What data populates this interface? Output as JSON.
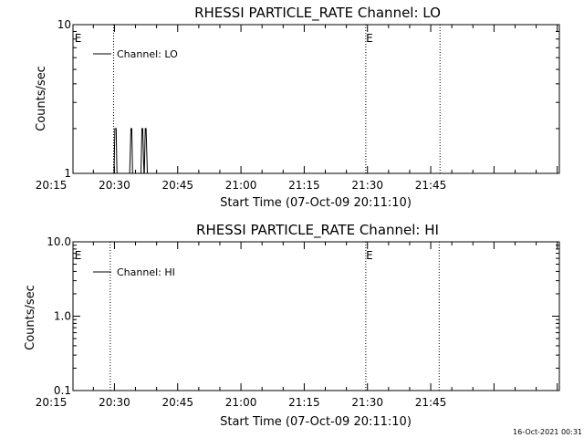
{
  "footer_timestamp": "16-Oct-2021 00:31",
  "chart_data": [
    {
      "type": "line",
      "title": "RHESSI PARTICLE_RATE Channel: LO",
      "xlabel": "Start Time (07-Oct-09 20:11:10)",
      "ylabel": "Counts/sec",
      "yscale": "log",
      "ylim": [
        1,
        10
      ],
      "ytick_labels": [
        {
          "value": 1,
          "label": "1"
        },
        {
          "value": 10,
          "label": "10"
        }
      ],
      "xlim_minutes": [
        20.17,
        135.5
      ],
      "xtick_labels": [
        {
          "minute": 15,
          "label": "20:15"
        },
        {
          "minute": 30,
          "label": "20:30"
        },
        {
          "minute": 45,
          "label": "20:45"
        },
        {
          "minute": 60,
          "label": "21:00"
        },
        {
          "minute": 75,
          "label": "21:15"
        },
        {
          "minute": 90,
          "label": "21:30"
        },
        {
          "minute": 105,
          "label": "21:45"
        }
      ],
      "legend_text": "Channel: LO",
      "legend_position": "top-left",
      "event_lines_minutes": [
        29.8,
        89.6,
        107.2
      ],
      "event_markers": [
        {
          "minute": 20.5,
          "label": "E"
        },
        {
          "minute": 89.6,
          "label": "E"
        }
      ],
      "series": [
        {
          "x_minutes": [
            29.2,
            29.9,
            30.1,
            30.4,
            30.6,
            30.8,
            33.6,
            33.9,
            34.1,
            34.3,
            36.3,
            36.5,
            36.7,
            37.0,
            37.1,
            37.3,
            37.5,
            37.8,
            38.0,
            120.0
          ],
          "values": [
            1,
            1,
            2,
            2,
            1,
            1,
            1,
            2,
            2,
            1,
            1,
            2,
            2,
            1,
            1,
            2,
            2,
            1,
            1,
            1
          ]
        }
      ]
    },
    {
      "type": "line",
      "title": "RHESSI PARTICLE_RATE Channel: HI",
      "xlabel": "Start Time (07-Oct-09 20:11:10)",
      "ylabel": "Counts/sec",
      "yscale": "log",
      "ylim": [
        0.1,
        10
      ],
      "ytick_labels": [
        {
          "value": 0.1,
          "label": "0.1"
        },
        {
          "value": 1,
          "label": "1.0"
        },
        {
          "value": 10,
          "label": "10.0"
        }
      ],
      "xlim_minutes": [
        20.17,
        135.5
      ],
      "xtick_labels": [
        {
          "minute": 15,
          "label": "20:15"
        },
        {
          "minute": 30,
          "label": "20:30"
        },
        {
          "minute": 45,
          "label": "20:45"
        },
        {
          "minute": 60,
          "label": "21:00"
        },
        {
          "minute": 75,
          "label": "21:15"
        },
        {
          "minute": 90,
          "label": "21:30"
        },
        {
          "minute": 105,
          "label": "21:45"
        }
      ],
      "legend_text": "Channel: HI",
      "legend_position": "top-left",
      "event_lines_minutes": [
        29.0,
        89.6,
        107.0
      ],
      "event_markers": [
        {
          "minute": 20.5,
          "label": "E"
        },
        {
          "minute": 89.6,
          "label": "E"
        }
      ],
      "series": []
    }
  ]
}
